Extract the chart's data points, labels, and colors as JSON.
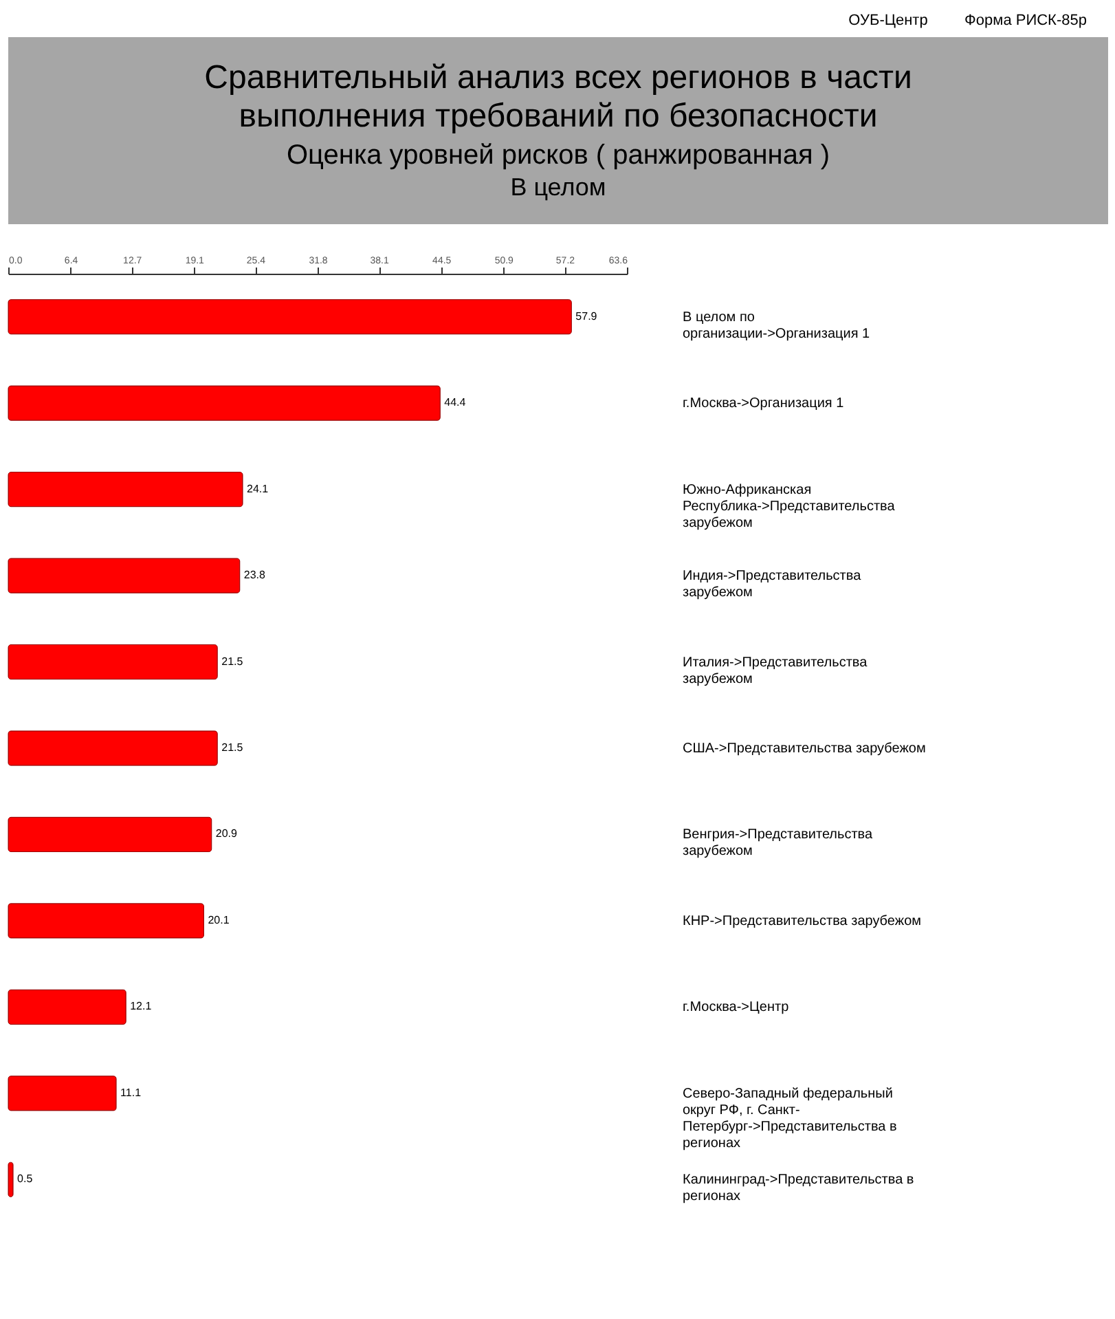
{
  "chart_data": {
    "type": "bar",
    "orientation": "horizontal",
    "title": "Сравнительный анализ всех регионов в части выполнения требований по безопасности",
    "subtitle": "Оценка уровней рисков ( ранжированная )",
    "annotations": [
      "ОУБ-Центр",
      "Форма РИСК-85р",
      "В целом"
    ],
    "categories": [
      "В целом по организации->Организация 1",
      "г.Москва->Организация 1",
      "Южно-Африканская Республика->Представительства зарубежом",
      "Индия->Представительства зарубежом",
      "Италия->Представительства зарубежом",
      "США->Представительства зарубежом",
      "Венгрия->Представительства зарубежом",
      "КНР->Представительства зарубежом",
      "г.Москва->Центр",
      "Северо-Западный федеральный округ РФ, г. Санкт-Петербург->Представительства в регионах",
      "Калининград->Представительства в регионах"
    ],
    "values": [
      57.9,
      44.4,
      24.1,
      23.8,
      21.5,
      21.5,
      20.9,
      20.1,
      12.1,
      11.1,
      0.5
    ],
    "color": "#ff0000",
    "data_labels": true,
    "xlim": [
      0,
      63.6
    ],
    "xticks": [
      {
        "value": 0,
        "label": "0.0"
      },
      6.4,
      12.7,
      19.1,
      25.4,
      31.8,
      38.1,
      44.5,
      50.9,
      57.2,
      63.6
    ],
    "grid": false
  }
}
